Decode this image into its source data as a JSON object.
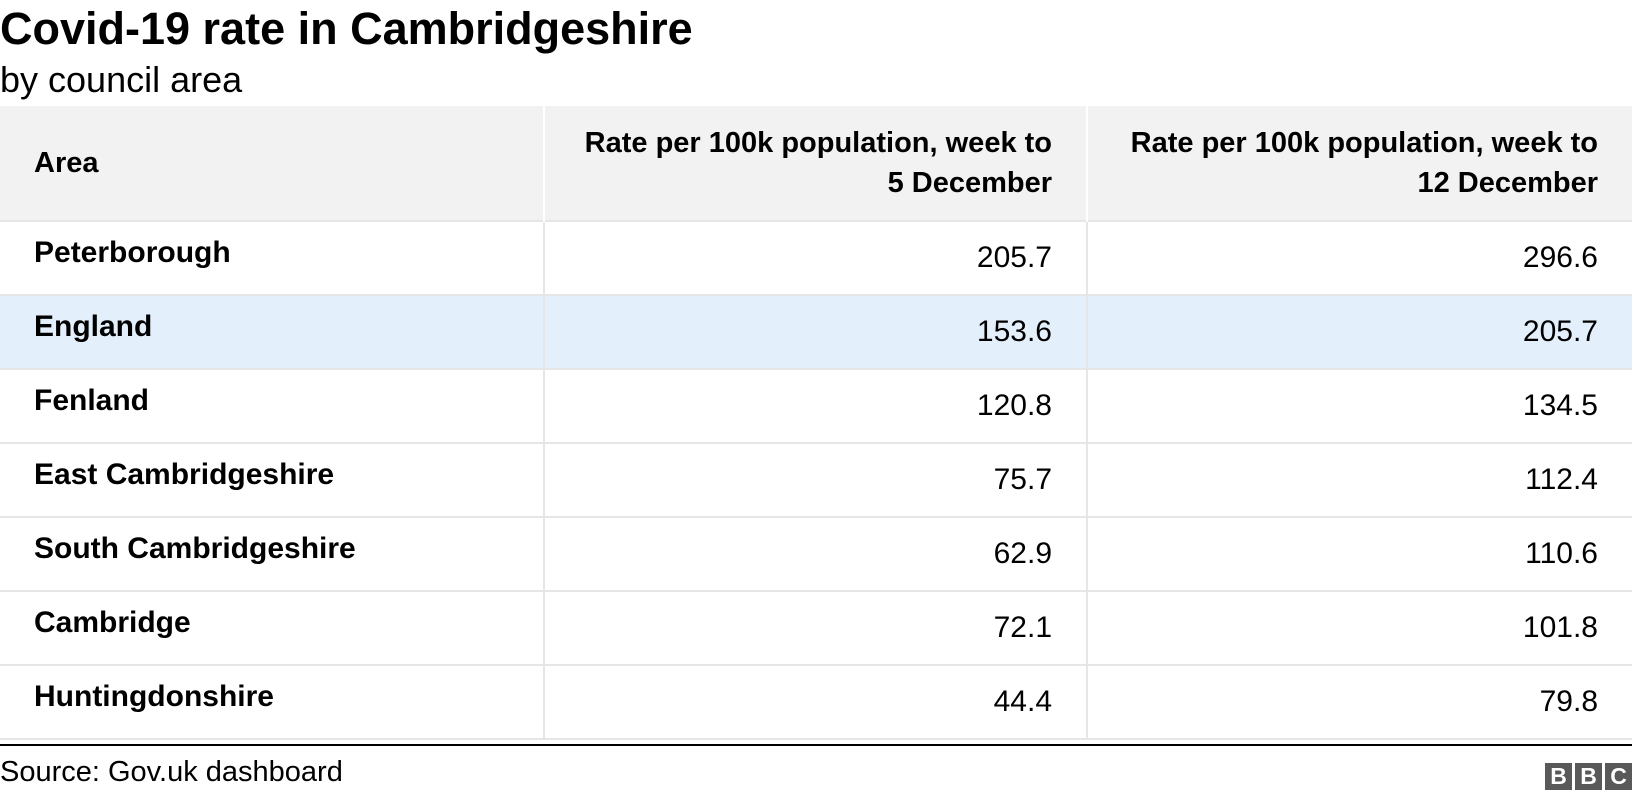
{
  "header": {
    "title": "Covid-19 rate in Cambridgeshire",
    "subtitle": "by council area"
  },
  "chart_data": {
    "type": "table",
    "title": "Covid-19 rate in Cambridgeshire",
    "subtitle": "by council area",
    "columns": [
      "Area",
      "Rate per 100k population, week to 5 December",
      "Rate per 100k population, week to 12 December"
    ],
    "rows": [
      {
        "area": "Peterborough",
        "week_to_5_december": "205.7",
        "week_to_12_december": "296.6",
        "highlight": false
      },
      {
        "area": "England",
        "week_to_5_december": "153.6",
        "week_to_12_december": "205.7",
        "highlight": true
      },
      {
        "area": "Fenland",
        "week_to_5_december": "120.8",
        "week_to_12_december": "134.5",
        "highlight": false
      },
      {
        "area": "East Cambridgeshire",
        "week_to_5_december": "75.7",
        "week_to_12_december": "112.4",
        "highlight": false
      },
      {
        "area": "South Cambridgeshire",
        "week_to_5_december": "62.9",
        "week_to_12_december": "110.6",
        "highlight": false
      },
      {
        "area": "Cambridge",
        "week_to_5_december": "72.1",
        "week_to_12_december": "101.8",
        "highlight": false
      },
      {
        "area": "Huntingdonshire",
        "week_to_5_december": "44.4",
        "week_to_12_december": "79.8",
        "highlight": false
      }
    ],
    "highlight_color": "#e3f0fb",
    "header_background": "#f2f2f2"
  },
  "footer": {
    "source": "Source: Gov.uk dashboard",
    "logo_letters": [
      "B",
      "B",
      "C"
    ]
  }
}
